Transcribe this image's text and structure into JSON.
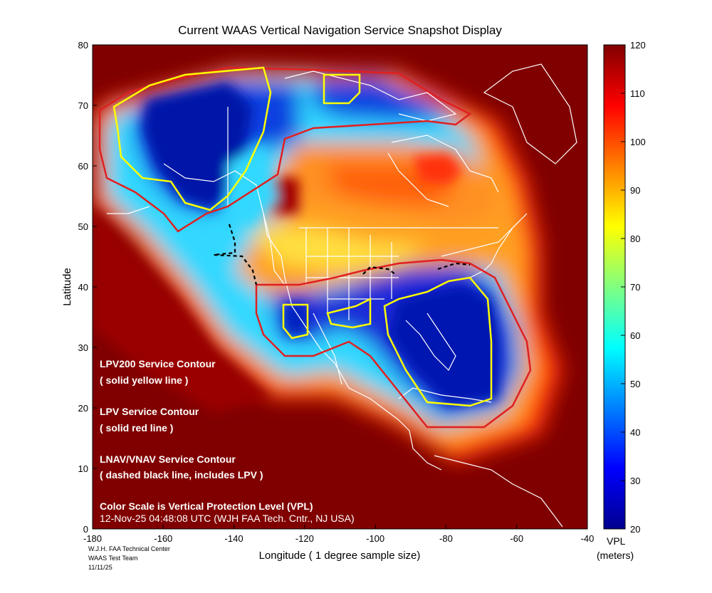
{
  "title": "Current WAAS Vertical Navigation Service Snapshot Display",
  "map": {
    "xlabel": "Longitude   ( 1 degree sample size)",
    "ylabel": "Latitude",
    "x_ticks": [
      "-180",
      "-160",
      "-140",
      "-120",
      "-100",
      "-80",
      "-60",
      "-40"
    ],
    "y_ticks": [
      "80",
      "70",
      "60",
      "50",
      "40",
      "30",
      "20",
      "10",
      "0"
    ],
    "xlim": [
      -180,
      -40
    ],
    "ylim": [
      0,
      80
    ]
  },
  "legend_text": {
    "lpv200": "LPV200 Service Contour",
    "lpv200_sub": "( solid yellow line )",
    "lpv": "LPV Service Contour",
    "lpv_sub": "( solid red line )",
    "lnav": "LNAV/VNAV Service Contour",
    "lnav_sub": "( dashed black line, includes LPV )",
    "scale": "Color Scale is Vertical Protection Level (VPL)",
    "timestamp": "12-Nov-25 04:48:08 UTC  (WJH FAA Tech. Cntr., NJ USA)"
  },
  "colorbar": {
    "ticks": [
      "120",
      "110",
      "100",
      "90",
      "80",
      "70",
      "60",
      "50",
      "40",
      "30",
      "20"
    ],
    "label_line1": "VPL",
    "label_line2": "(meters)",
    "range": [
      20,
      120
    ]
  },
  "footer": {
    "line1": "W.J.H. FAA Technical Center",
    "line2": "WAAS Test Team",
    "line3": "11/11/25"
  },
  "colors": {
    "high": "#800000",
    "mid_high": "#ff2000",
    "mid": "#ffd000",
    "mid_low": "#20d0ff",
    "low": "#0010b0",
    "lpv200_contour": "#ffff00",
    "lpv_contour": "#e02020",
    "lnav_contour": "#000000"
  }
}
